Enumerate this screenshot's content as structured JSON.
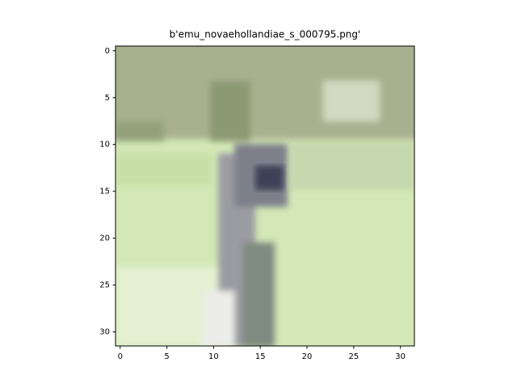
{
  "chart_data": {
    "type": "image",
    "title": "b'emu_novaehollandiae_s_000795.png'",
    "xlim": [
      -0.5,
      31.5
    ],
    "ylim": [
      31.5,
      -0.5
    ],
    "xticks": [
      0,
      5,
      10,
      15,
      20,
      25,
      30
    ],
    "yticks": [
      0,
      5,
      10,
      15,
      20,
      25,
      30
    ]
  }
}
